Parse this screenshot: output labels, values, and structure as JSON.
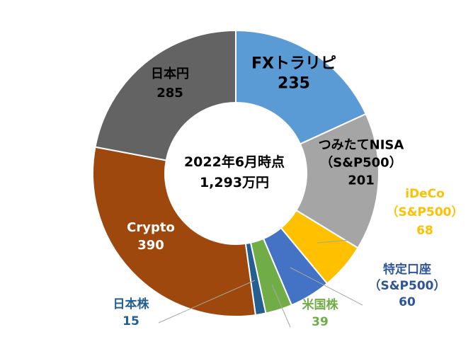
{
  "chart_data": {
    "type": "pie",
    "variant": "donut",
    "center_text": [
      "2022年6月時点",
      "1,293万円"
    ],
    "total": 1293,
    "unit": "万円",
    "start_angle_deg": 0,
    "direction": "clockwise",
    "slices": [
      {
        "label": [
          "FXトラリピ"
        ],
        "value": 235,
        "color": "#5b9bd5",
        "text_color": "#000000",
        "placement": "inside"
      },
      {
        "label": [
          "つみたてNISA",
          "（S&P500）"
        ],
        "value": 201,
        "color": "#a5a5a5",
        "text_color": "#000000",
        "placement": "inside"
      },
      {
        "label": [
          "iDeCo",
          "（S&P500）"
        ],
        "value": 68,
        "color": "#ffc000",
        "text_color": "#ffc000",
        "placement": "outside"
      },
      {
        "label": [
          "特定口座",
          "（S&P500）"
        ],
        "value": 60,
        "color": "#4472c4",
        "text_color": "#2e5597",
        "placement": "outside"
      },
      {
        "label": [
          "米国株"
        ],
        "value": 39,
        "color": "#70ad47",
        "text_color": "#70ad47",
        "placement": "outside"
      },
      {
        "label": [
          "日本株"
        ],
        "value": 15,
        "color": "#255e91",
        "text_color": "#255e91",
        "placement": "outside"
      },
      {
        "label": [
          "Crypto"
        ],
        "value": 390,
        "color": "#9e480e",
        "text_color": "#ffffff",
        "placement": "inside"
      },
      {
        "label": [
          "日本円"
        ],
        "value": 285,
        "color": "#636363",
        "text_color": "#000000",
        "placement": "inside"
      }
    ]
  }
}
